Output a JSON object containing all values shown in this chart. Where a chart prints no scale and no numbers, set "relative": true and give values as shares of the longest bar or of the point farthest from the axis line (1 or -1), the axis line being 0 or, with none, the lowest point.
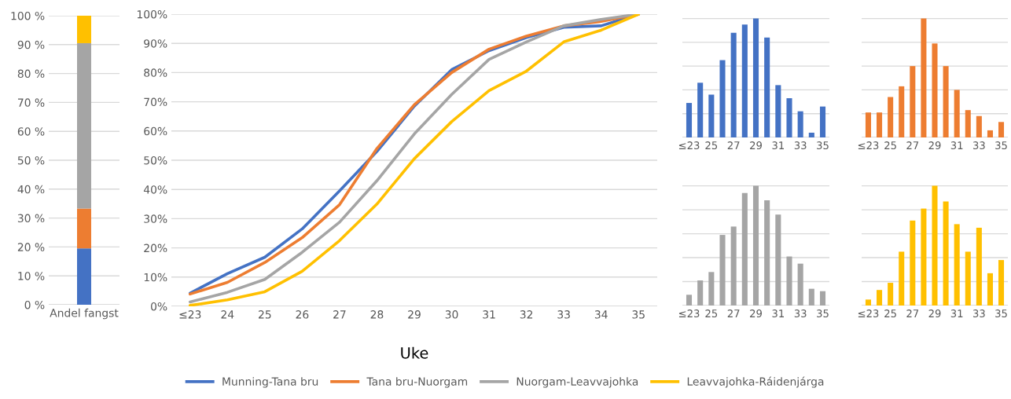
{
  "chart_data": [
    {
      "type": "bar",
      "stacked": true,
      "categories": [
        "Andel fangst"
      ],
      "ylim": [
        0,
        100
      ],
      "yticks": [
        {
          "value": 0,
          "label": "0 %"
        },
        {
          "value": 10,
          "label": "10 %"
        },
        {
          "value": 20,
          "label": "20 %"
        },
        {
          "value": 30,
          "label": "30 %"
        },
        {
          "value": 40,
          "label": "40 %"
        },
        {
          "value": 50,
          "label": "50 %"
        },
        {
          "value": 60,
          "label": "60 %"
        },
        {
          "value": 70,
          "label": "70 %"
        },
        {
          "value": 80,
          "label": "80 %"
        },
        {
          "value": 90,
          "label": "90 %"
        },
        {
          "value": 100,
          "label": "100 %"
        }
      ],
      "grid": "y",
      "series": [
        {
          "color": "#4472c4",
          "values": [
            19.5
          ]
        },
        {
          "color": "#ed7d31",
          "values": [
            13.8
          ]
        },
        {
          "color": "#a5a5a5",
          "values": [
            57.2
          ]
        },
        {
          "color": "#ffc000",
          "values": [
            9.5
          ]
        }
      ]
    },
    {
      "type": "line",
      "xlabel": "Uke",
      "categories": [
        "≤23",
        "24",
        "25",
        "26",
        "27",
        "28",
        "29",
        "30",
        "31",
        "32",
        "33",
        "34",
        "35"
      ],
      "ylim": [
        0,
        100
      ],
      "yticks": [
        {
          "value": 0,
          "label": "0%"
        },
        {
          "value": 10,
          "label": "10%"
        },
        {
          "value": 20,
          "label": "20%"
        },
        {
          "value": 30,
          "label": "30%"
        },
        {
          "value": 40,
          "label": "40%"
        },
        {
          "value": 50,
          "label": "50%"
        },
        {
          "value": 60,
          "label": "60%"
        },
        {
          "value": 70,
          "label": "70%"
        },
        {
          "value": 80,
          "label": "80%"
        },
        {
          "value": 90,
          "label": "90%"
        },
        {
          "value": 100,
          "label": "100%"
        }
      ],
      "grid": "y",
      "legend": "bottom",
      "marker": "none",
      "line_style": "solid",
      "series": [
        {
          "name": "Munning-Tana bru",
          "color": "#4472c4",
          "values": [
            4.5,
            11.2,
            16.8,
            26.5,
            39.5,
            53,
            68.5,
            81,
            87.5,
            92,
            95.5,
            96,
            100
          ]
        },
        {
          "name": "Tana bru-Nuorgam",
          "color": "#ed7d31",
          "values": [
            4.2,
            8.2,
            15,
            23.5,
            34.8,
            54,
            69,
            80,
            88,
            92.5,
            96,
            97.5,
            100
          ]
        },
        {
          "name": "Nuorgam-Leavvajohka",
          "color": "#a5a5a5",
          "values": [
            1.5,
            4.8,
            9.2,
            18.5,
            28.8,
            43,
            59,
            72.5,
            84.5,
            90.5,
            96,
            98.2,
            100
          ]
        },
        {
          "name": "Leavvajohka-Ráidenjárga",
          "color": "#ffc000",
          "values": [
            0.3,
            2.2,
            5,
            12,
            22.5,
            35,
            50.5,
            63.2,
            73.8,
            80.5,
            90.5,
            94.5,
            100
          ]
        }
      ]
    },
    {
      "type": "bar",
      "relative": true,
      "tick_labels": "x",
      "grid": "y",
      "categories": [
        "≤23",
        null,
        "25",
        null,
        "27",
        null,
        "29",
        null,
        "31",
        null,
        "33",
        null,
        "35"
      ],
      "color": "#4472c4",
      "values": [
        0.29,
        0.46,
        0.36,
        0.65,
        0.88,
        0.95,
        1,
        0.84,
        0.44,
        0.33,
        0.22,
        0.04,
        0.26
      ]
    },
    {
      "type": "bar",
      "relative": true,
      "tick_labels": "x",
      "grid": "y",
      "categories": [
        "≤23",
        null,
        "25",
        null,
        "27",
        null,
        "29",
        null,
        "31",
        null,
        "33",
        null,
        "35"
      ],
      "color": "#ed7d31",
      "values": [
        0.21,
        0.21,
        0.34,
        0.43,
        0.6,
        1,
        0.79,
        0.6,
        0.4,
        0.23,
        0.18,
        0.06,
        0.13
      ]
    },
    {
      "type": "bar",
      "relative": true,
      "tick_labels": "x",
      "grid": "y",
      "categories": [
        "≤23",
        null,
        "25",
        null,
        "27",
        null,
        "29",
        null,
        "31",
        null,
        "33",
        null,
        "35"
      ],
      "color": "#a5a5a5",
      "values": [
        0.09,
        0.21,
        0.28,
        0.59,
        0.66,
        0.94,
        1,
        0.88,
        0.76,
        0.41,
        0.35,
        0.14,
        0.12
      ]
    },
    {
      "type": "bar",
      "relative": true,
      "tick_labels": "x",
      "grid": "y",
      "categories": [
        "≤23",
        null,
        "25",
        null,
        "27",
        null,
        "29",
        null,
        "31",
        null,
        "33",
        null,
        "35"
      ],
      "color": "#ffc000",
      "values": [
        0.05,
        0.13,
        0.19,
        0.45,
        0.71,
        0.81,
        1,
        0.87,
        0.68,
        0.45,
        0.65,
        0.27,
        0.38
      ]
    }
  ]
}
